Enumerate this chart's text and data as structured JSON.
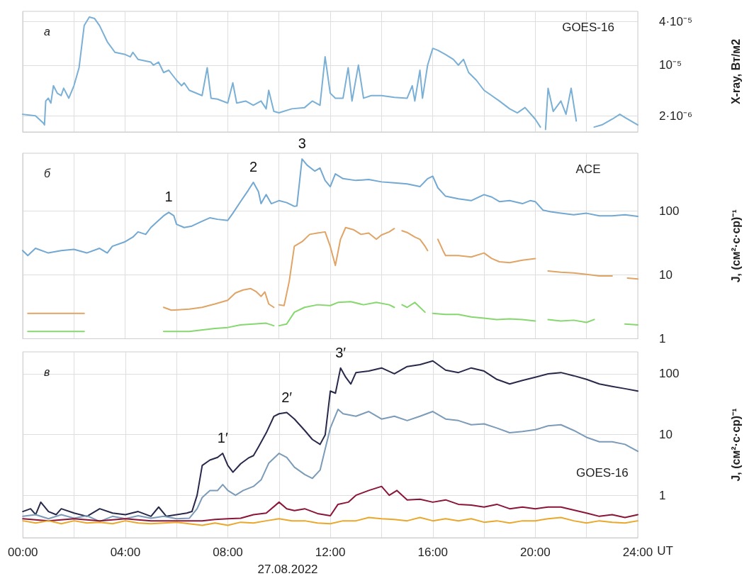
{
  "chart_data": [
    {
      "type": "line",
      "ylabel": "X-ray, Вт/м2",
      "annotations": [
        "а",
        "GOES-16"
      ],
      "xlim": [
        0,
        24
      ],
      "xticks": [
        {
          "value": 0,
          "label": null
        },
        {
          "value": 2,
          "label": null
        },
        {
          "value": 4,
          "label": null
        },
        {
          "value": 6,
          "label": null
        },
        {
          "value": 8,
          "label": null
        },
        {
          "value": 10,
          "label": null
        },
        {
          "value": 12,
          "label": null
        },
        {
          "value": 14,
          "label": null
        },
        {
          "value": 16,
          "label": null
        },
        {
          "value": 18,
          "label": null
        },
        {
          "value": 20,
          "label": null
        },
        {
          "value": 22,
          "label": null
        },
        {
          "value": 24,
          "label": null
        }
      ],
      "ylim": [
        1.2e-06,
        5.5e-05
      ],
      "yticks": [
        {
          "value": 2e-06,
          "label": "2·10⁻⁶"
        },
        {
          "value": 1e-05,
          "label": "10⁻⁵"
        },
        {
          "value": 4e-05,
          "label": "4·10⁻⁵"
        }
      ],
      "log": "y",
      "grid": true,
      "marker": "none",
      "tick_labels": "y",
      "series": [
        {
          "color": "#7ab0d6",
          "x": [
            0,
            0.5,
            0.8,
            0.85,
            0.9,
            1.0,
            1.1,
            1.2,
            1.35,
            1.5,
            1.6,
            1.8,
            2.0,
            2.2,
            2.4,
            2.6,
            2.8,
            3.0,
            3.3,
            3.6,
            4.0,
            4.2,
            4.3,
            4.5,
            5.0,
            5.1,
            5.3,
            5.5,
            5.7,
            6.0,
            6.2,
            6.3,
            6.5,
            7.0,
            7.2,
            7.35,
            7.6,
            8.0,
            8.2,
            8.35,
            8.7,
            9.0,
            9.3,
            9.5,
            9.6,
            9.8,
            10.0,
            10.5,
            11.0,
            11.3,
            11.6,
            11.8,
            12.0,
            12.2,
            12.5,
            12.7,
            12.85,
            13.1,
            13.3,
            13.6,
            14.0,
            14.5,
            15.0,
            15.2,
            15.3,
            15.5,
            15.6,
            15.8,
            16.0,
            16.2,
            16.5,
            16.8,
            17.0,
            17.2,
            17.4,
            17.7,
            18.0,
            18.3,
            18.6,
            19.0,
            19.3,
            19.6,
            20.0,
            20.2,
            20.3,
            20.4,
            20.5,
            20.7,
            21.0,
            21.2,
            21.4,
            21.6,
            21.9,
            22.3,
            22.6,
            23.0,
            23.3,
            23.5,
            24
          ],
          "values": [
            2.1e-06,
            2e-06,
            1.6e-06,
            1.5e-06,
            3.2e-06,
            3.5e-06,
            3e-06,
            5.2e-06,
            4.1e-06,
            3.8e-06,
            4.8e-06,
            3.5e-06,
            5.2e-06,
            9.2e-06,
            3.5e-05,
            4.6e-05,
            4.4e-05,
            3.5e-05,
            2.1e-05,
            1.5e-05,
            1.4e-05,
            1.3e-05,
            1.5e-05,
            1.2e-05,
            1.1e-05,
            1e-05,
            1.1e-05,
            7.9e-06,
            8.5e-06,
            6.2e-06,
            5.2e-06,
            5.7e-06,
            4.5e-06,
            3.8e-06,
            9.2e-06,
            3.5e-06,
            3.4e-06,
            3e-06,
            5.7e-06,
            3e-06,
            3.2e-06,
            2.8e-06,
            3.2e-06,
            2.5e-06,
            4.5e-06,
            2.3e-06,
            2.2e-06,
            2.5e-06,
            2.6e-06,
            3.2e-06,
            2.8e-06,
            1.3e-05,
            4.1e-06,
            3.5e-06,
            3.5e-06,
            9.2e-06,
            3.2e-06,
            1e-05,
            3.5e-06,
            3.8e-06,
            3.8e-06,
            3.6e-06,
            3.5e-06,
            5.2e-06,
            3.2e-06,
            8.5e-06,
            3.5e-06,
            1e-05,
            1.7e-05,
            1.6e-05,
            1.4e-05,
            1.2e-05,
            1e-05,
            1.2e-05,
            7.9e-06,
            6.2e-06,
            4.5e-06,
            3.8e-06,
            3.2e-06,
            2.5e-06,
            2.2e-06,
            2.6e-06,
            1.8e-06,
            1.4e-06,
            null,
            1.3e-06,
            4.8e-06,
            2.3e-06,
            3.2e-06,
            2.1e-06,
            4.8e-06,
            1.7e-06,
            null,
            1.4e-06,
            1.5e-06,
            1.8e-06,
            2.1e-06,
            1.9e-06,
            1.5e-06
          ]
        }
      ]
    },
    {
      "type": "line",
      "ylabel": "J, (см²·с·ср)⁻¹",
      "annotations": [
        "б",
        "ACE",
        {
          "text": "1",
          "x": 5.7,
          "y": 95
        },
        {
          "text": "2",
          "x": 9,
          "y": 280
        },
        {
          "text": "3",
          "x": 10.9,
          "y": 650
        }
      ],
      "xlim": [
        0,
        24
      ],
      "xticks": [
        {
          "value": 0,
          "label": null
        },
        {
          "value": 2,
          "label": null
        },
        {
          "value": 4,
          "label": null
        },
        {
          "value": 6,
          "label": null
        },
        {
          "value": 8,
          "label": null
        },
        {
          "value": 10,
          "label": null
        },
        {
          "value": 12,
          "label": null
        },
        {
          "value": 14,
          "label": null
        },
        {
          "value": 16,
          "label": null
        },
        {
          "value": 18,
          "label": null
        },
        {
          "value": 20,
          "label": null
        },
        {
          "value": 22,
          "label": null
        },
        {
          "value": 24,
          "label": null
        }
      ],
      "ylim": [
        1,
        800
      ],
      "yticks": [
        1,
        10,
        100
      ],
      "log": "y",
      "grid": true,
      "marker": "none",
      "tick_labels": "y",
      "series": [
        {
          "color": "#72a8d2",
          "x": [
            0,
            0.2,
            0.5,
            1,
            1.5,
            2,
            2.5,
            3,
            3.3,
            3.5,
            4,
            4.3,
            4.5,
            4.8,
            5,
            5.3,
            5.5,
            5.7,
            5.9,
            6,
            6.3,
            6.6,
            7,
            7.3,
            7.6,
            8,
            8.2,
            8.5,
            8.8,
            9,
            9.2,
            9.3,
            9.5,
            9.7,
            10,
            10.3,
            10.6,
            10.7,
            10.9,
            11.1,
            11.4,
            11.6,
            11.8,
            12,
            12.2,
            12.5,
            13,
            13.5,
            14,
            14.5,
            15,
            15.5,
            15.8,
            16,
            16.2,
            16.5,
            17,
            17.5,
            18,
            18.3,
            18.6,
            19,
            19.5,
            19.8,
            20,
            20.3,
            20.6,
            21,
            21.5,
            22,
            22.5,
            23,
            23.5,
            24
          ],
          "values": [
            24,
            20,
            26,
            22,
            24,
            25,
            22,
            26,
            22,
            28,
            33,
            39,
            47,
            43,
            55,
            71,
            84,
            95,
            84,
            62,
            55,
            58,
            69,
            78,
            74,
            71,
            92,
            140,
            210,
            280,
            200,
            130,
            180,
            130,
            145,
            135,
            118,
            120,
            650,
            520,
            420,
            470,
            300,
            240,
            380,
            320,
            300,
            310,
            285,
            275,
            265,
            240,
            320,
            350,
            230,
            170,
            155,
            145,
            180,
            165,
            140,
            145,
            130,
            145,
            140,
            103,
            97,
            92,
            87,
            92,
            84,
            84,
            87,
            82
          ]
        },
        {
          "color": "#e0a466",
          "x": [
            0.2,
            2.4,
            2.5,
            5.5,
            5.8,
            6.5,
            7,
            7.5,
            8,
            8.3,
            8.6,
            8.9,
            9.1,
            9.3,
            9.45,
            9.6,
            9.8,
            9.9,
            10,
            10.2,
            10.4,
            10.6,
            10.9,
            11.2,
            11.5,
            11.8,
            12,
            12.2,
            12.4,
            12.6,
            12.9,
            13.2,
            13.5,
            13.8,
            14,
            14.3,
            14.5,
            14.6,
            14.8,
            15,
            15.3,
            15.5,
            15.7,
            15.8,
            16,
            16.2,
            16.4,
            16.5,
            17,
            17.5,
            18,
            18.3,
            18.6,
            19,
            19.5,
            20,
            20.2,
            20.5,
            21,
            21.5,
            22,
            22.5,
            23,
            23.2,
            23.6,
            24
          ],
          "values": [
            2.5,
            2.5,
            null,
            3.1,
            2.8,
            2.9,
            3.1,
            3.5,
            4,
            5.2,
            5.8,
            6.1,
            5.5,
            4.6,
            5.4,
            3.5,
            3.1,
            null,
            3.4,
            3.3,
            7.9,
            28,
            33,
            43,
            45,
            47,
            28,
            14,
            36,
            55,
            51,
            43,
            45,
            36,
            42,
            47,
            53,
            null,
            49,
            46,
            39,
            36,
            28,
            24,
            null,
            36,
            24,
            20,
            20,
            19,
            22,
            18,
            16,
            15.5,
            17,
            18,
            null,
            11.5,
            11,
            10.7,
            10.2,
            9.6,
            9.6,
            null,
            8.9,
            8.6
          ]
        },
        {
          "color": "#86d86e",
          "x": [
            0.2,
            2.4,
            2.5,
            5.5,
            6.5,
            7.5,
            8,
            8.5,
            9,
            9.5,
            9.8,
            9.9,
            10,
            10.3,
            10.6,
            11,
            11.5,
            12,
            12.3,
            12.8,
            13.3,
            13.8,
            14.3,
            14.5,
            14.6,
            14.8,
            15,
            15.3,
            15.5,
            15.7,
            15.8,
            16,
            16.5,
            17,
            17.5,
            18,
            18.5,
            19,
            19.5,
            20,
            20.1,
            20.5,
            21,
            21.5,
            22,
            22.3,
            22.4,
            23.5,
            24
          ],
          "values": [
            1.3,
            1.3,
            null,
            1.3,
            1.3,
            1.45,
            1.5,
            1.65,
            1.7,
            1.75,
            1.6,
            null,
            1.6,
            1.7,
            2.6,
            3.1,
            3.4,
            3.3,
            3.7,
            3.8,
            3.4,
            3.7,
            3.4,
            3.1,
            null,
            3.4,
            3.1,
            3.7,
            3.1,
            2.6,
            null,
            2.5,
            2.4,
            2.4,
            2.2,
            2.1,
            2,
            2.05,
            2,
            1.9,
            null,
            2,
            1.9,
            1.95,
            1.8,
            2,
            null,
            1.7,
            1.65
          ]
        }
      ]
    },
    {
      "type": "line",
      "ylabel": "J, (см²·с·ср)⁻¹",
      "xlabel": "UT",
      "annotations": [
        "в",
        "27.08.2022",
        {
          "text": "1′",
          "x": 7.8,
          "y": 4.9
        },
        {
          "text": "2′",
          "x": 10.3,
          "y": 23
        },
        {
          "text": "3′",
          "x": 12.4,
          "y": 125
        }
      ],
      "xlim": [
        0,
        24
      ],
      "xticks": [
        {
          "value": 0,
          "label": "00:00"
        },
        {
          "value": 2,
          "label": null
        },
        {
          "value": 4,
          "label": "04:00"
        },
        {
          "value": 6,
          "label": null
        },
        {
          "value": 8,
          "label": "08:00"
        },
        {
          "value": 10,
          "label": null
        },
        {
          "value": 12,
          "label": "12:00"
        },
        {
          "value": 14,
          "label": null
        },
        {
          "value": 16,
          "label": "16:00"
        },
        {
          "value": 18,
          "label": null
        },
        {
          "value": 20,
          "label": "20:00"
        },
        {
          "value": 22,
          "label": null
        },
        {
          "value": 24,
          "label": "24:00"
        }
      ],
      "ylim": [
        0.2,
        230
      ],
      "yticks": [
        1,
        10,
        100
      ],
      "log": "y",
      "grid": true,
      "marker": "none",
      "series": [
        {
          "color": "#28294a",
          "x": [
            0,
            0.3,
            0.5,
            0.7,
            1,
            1.3,
            1.5,
            2,
            2.5,
            3,
            3.5,
            4,
            4.5,
            5,
            5.3,
            5.6,
            6,
            6.4,
            6.6,
            6.8,
            7,
            7.3,
            7.6,
            7.8,
            8,
            8.2,
            8.5,
            8.8,
            9,
            9.2,
            9.5,
            9.8,
            10,
            10.3,
            10.6,
            11,
            11.3,
            11.6,
            11.8,
            12,
            12.2,
            12.4,
            12.6,
            12.8,
            13,
            13.5,
            14,
            14.5,
            15,
            15.5,
            16,
            16.5,
            17,
            17.5,
            18,
            18.5,
            19,
            19.5,
            20,
            20.5,
            21,
            21.5,
            22,
            22.5,
            23,
            23.5,
            24
          ],
          "values": [
            0.54,
            0.6,
            0.48,
            0.77,
            0.54,
            0.48,
            0.6,
            0.51,
            0.45,
            0.6,
            0.51,
            0.48,
            0.54,
            0.45,
            0.64,
            0.45,
            0.48,
            0.51,
            0.54,
            1,
            3.1,
            3.8,
            4.2,
            4.9,
            3.1,
            2.4,
            3.3,
            4.1,
            4.5,
            6.3,
            10.7,
            20,
            22,
            23,
            18,
            11.7,
            8.3,
            6.9,
            9.9,
            52,
            48,
            125,
            88,
            68,
            105,
            111,
            125,
            100,
            132,
            142,
            163,
            115,
            105,
            125,
            111,
            81,
            68,
            78,
            88,
            100,
            105,
            93,
            81,
            68,
            62,
            57,
            52
          ]
        },
        {
          "name": "GOES-16",
          "color": "#7b9bb8",
          "x": [
            0,
            0.5,
            1,
            1.5,
            2,
            2.5,
            3,
            3.5,
            4,
            4.5,
            5,
            5.5,
            6,
            6.5,
            6.8,
            7,
            7.3,
            7.6,
            7.8,
            8,
            8.3,
            8.6,
            9,
            9.3,
            9.6,
            10,
            10.3,
            10.6,
            11,
            11.3,
            11.6,
            11.8,
            12,
            12.3,
            12.5,
            13,
            13.5,
            14,
            14.5,
            15,
            15.5,
            16,
            16.5,
            17,
            17.5,
            18,
            18.5,
            19,
            19.5,
            20,
            20.5,
            21,
            21.5,
            22,
            22.5,
            23,
            23.5,
            24
          ],
          "values": [
            0.45,
            0.48,
            0.41,
            0.48,
            0.42,
            0.46,
            0.37,
            0.45,
            0.41,
            0.46,
            0.42,
            0.45,
            0.41,
            0.42,
            0.6,
            0.92,
            1.2,
            1.2,
            1.5,
            1.2,
            1,
            1.2,
            1.4,
            1.8,
            3.4,
            4.9,
            4.2,
            2.9,
            2.2,
            1.9,
            2.6,
            5.8,
            12.8,
            26,
            22,
            20,
            24,
            18,
            20,
            17,
            20,
            24,
            18,
            17,
            14.5,
            15,
            12.8,
            10.7,
            11.2,
            12,
            13.9,
            14.5,
            11.7,
            9,
            7.6,
            7.6,
            6.9,
            5.3
          ]
        },
        {
          "color": "#8a1538",
          "x": [
            0,
            1,
            2,
            3,
            4,
            5,
            6,
            7,
            7.5,
            8,
            8.5,
            9,
            9.5,
            10,
            10.3,
            10.6,
            11,
            11.5,
            12,
            12.3,
            12.7,
            13,
            13.5,
            14,
            14.3,
            14.6,
            15,
            15.5,
            16,
            16.5,
            17,
            17.5,
            18,
            18.5,
            19,
            19.5,
            20,
            20.5,
            21,
            21.5,
            22,
            22.5,
            23,
            23.5,
            24
          ],
          "values": [
            0.41,
            0.38,
            0.41,
            0.38,
            0.41,
            0.38,
            0.38,
            0.38,
            0.4,
            0.41,
            0.42,
            0.48,
            0.51,
            0.77,
            0.6,
            0.56,
            0.6,
            0.5,
            0.46,
            0.71,
            0.77,
            1,
            1.2,
            1.4,
            1,
            1.2,
            0.84,
            0.86,
            0.77,
            0.84,
            0.71,
            0.69,
            0.64,
            0.71,
            0.6,
            0.64,
            0.6,
            0.64,
            0.64,
            0.57,
            0.51,
            0.45,
            0.48,
            0.43,
            0.48
          ]
        },
        {
          "color": "#eba72a",
          "x": [
            0,
            0.5,
            1,
            1.5,
            2,
            2.5,
            3,
            3.5,
            4,
            4.5,
            5,
            6,
            7,
            7.5,
            8,
            8.5,
            9,
            9.5,
            10,
            10.5,
            11,
            11.5,
            12,
            12.5,
            13,
            13.5,
            14,
            14.5,
            15,
            15.5,
            16,
            16.5,
            17,
            17.5,
            18,
            18.5,
            19,
            19.5,
            20,
            20.5,
            21,
            21.5,
            22,
            22.5,
            23,
            23.5,
            24
          ],
          "values": [
            0.38,
            0.35,
            0.38,
            0.34,
            0.38,
            0.35,
            0.36,
            0.34,
            0.38,
            0.35,
            0.34,
            0.36,
            0.32,
            0.35,
            0.32,
            0.36,
            0.35,
            0.38,
            0.41,
            0.38,
            0.38,
            0.35,
            0.34,
            0.38,
            0.38,
            0.43,
            0.41,
            0.4,
            0.38,
            0.43,
            0.38,
            0.41,
            0.38,
            0.41,
            0.36,
            0.38,
            0.35,
            0.38,
            0.38,
            0.41,
            0.43,
            0.38,
            0.35,
            0.38,
            0.36,
            0.35,
            0.38
          ]
        }
      ]
    }
  ]
}
